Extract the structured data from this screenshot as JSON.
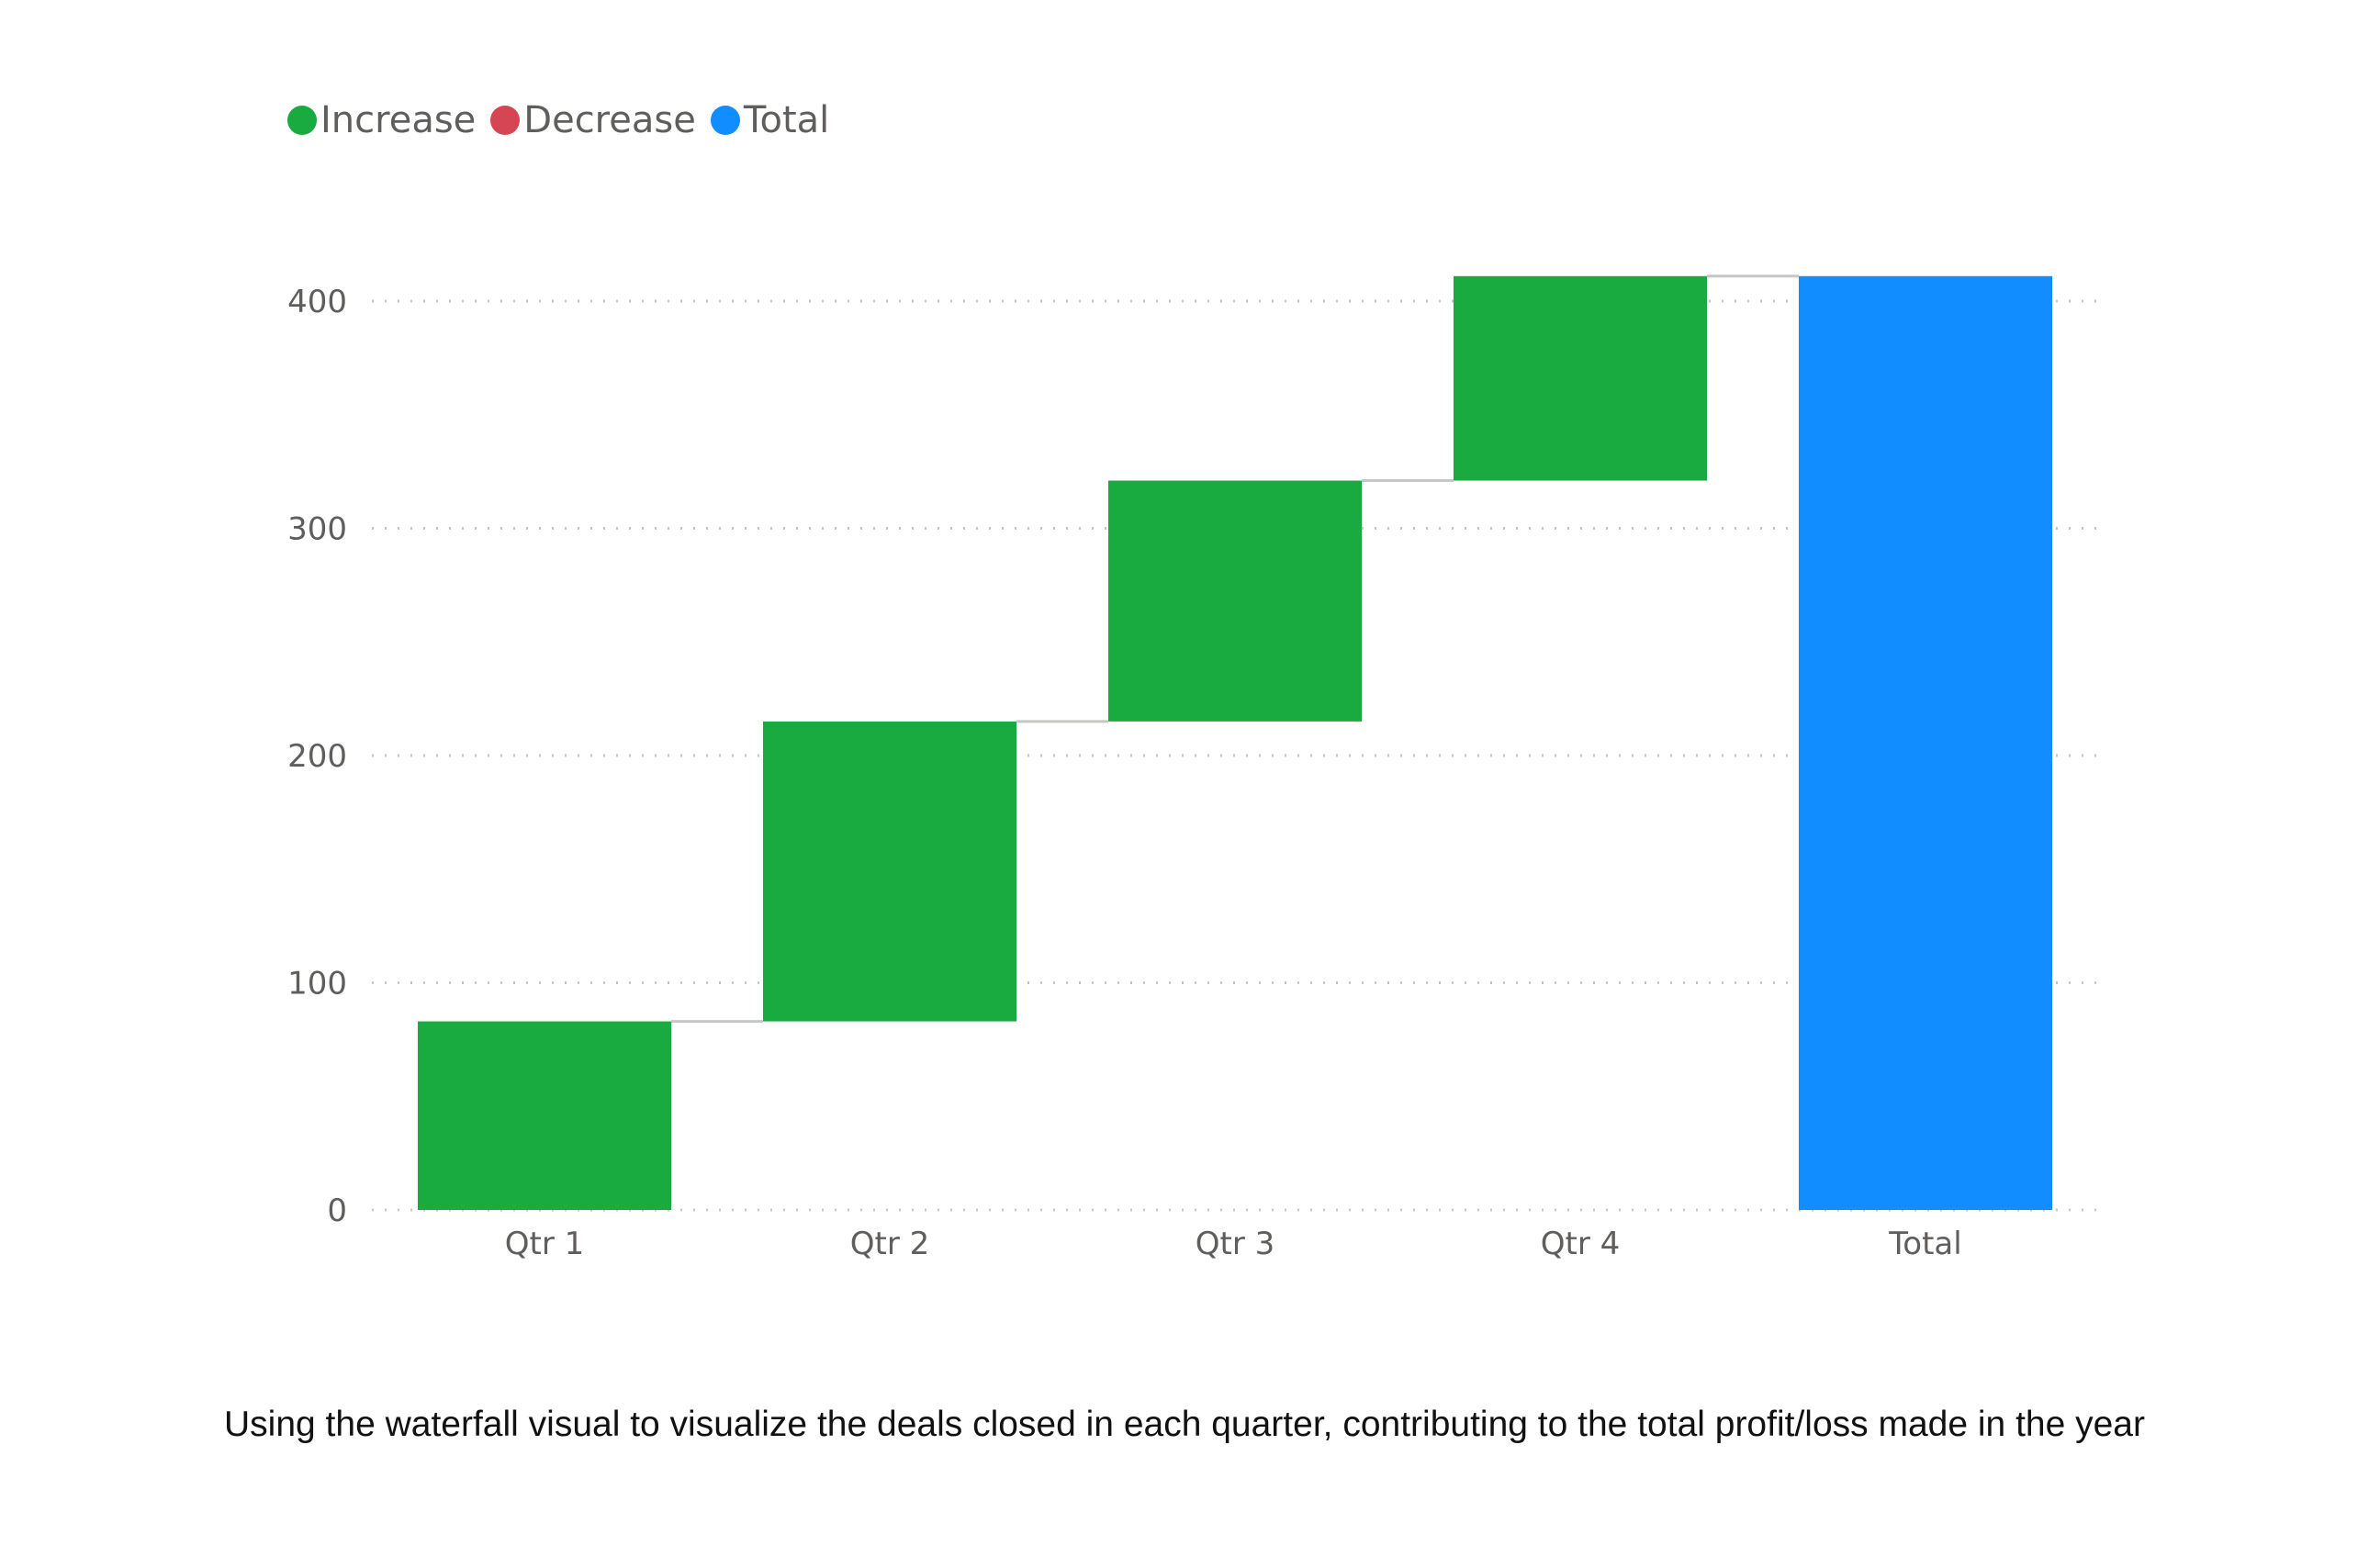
{
  "chart_data": {
    "type": "bar",
    "subtype": "waterfall",
    "categories": [
      "Qtr 1",
      "Qtr 2",
      "Qtr 3",
      "Qtr 4",
      "Total"
    ],
    "values": [
      83,
      132,
      106,
      90,
      411
    ],
    "bar_kinds": [
      "increase",
      "increase",
      "increase",
      "increase",
      "total"
    ],
    "ylim": [
      0,
      410
    ],
    "yticks": [
      0,
      100,
      200,
      300,
      400
    ],
    "grid": true,
    "legend_position": "top-left",
    "legend": [
      {
        "label": "Increase",
        "color": "#1aab40"
      },
      {
        "label": "Decrease",
        "color": "#d64554"
      },
      {
        "label": "Total",
        "color": "#118dff"
      }
    ],
    "title": "",
    "xlabel": "",
    "ylabel": ""
  },
  "caption": "Using the waterfall visual to visualize the deals closed in each quarter, contributing to the total profit/loss made in the year"
}
